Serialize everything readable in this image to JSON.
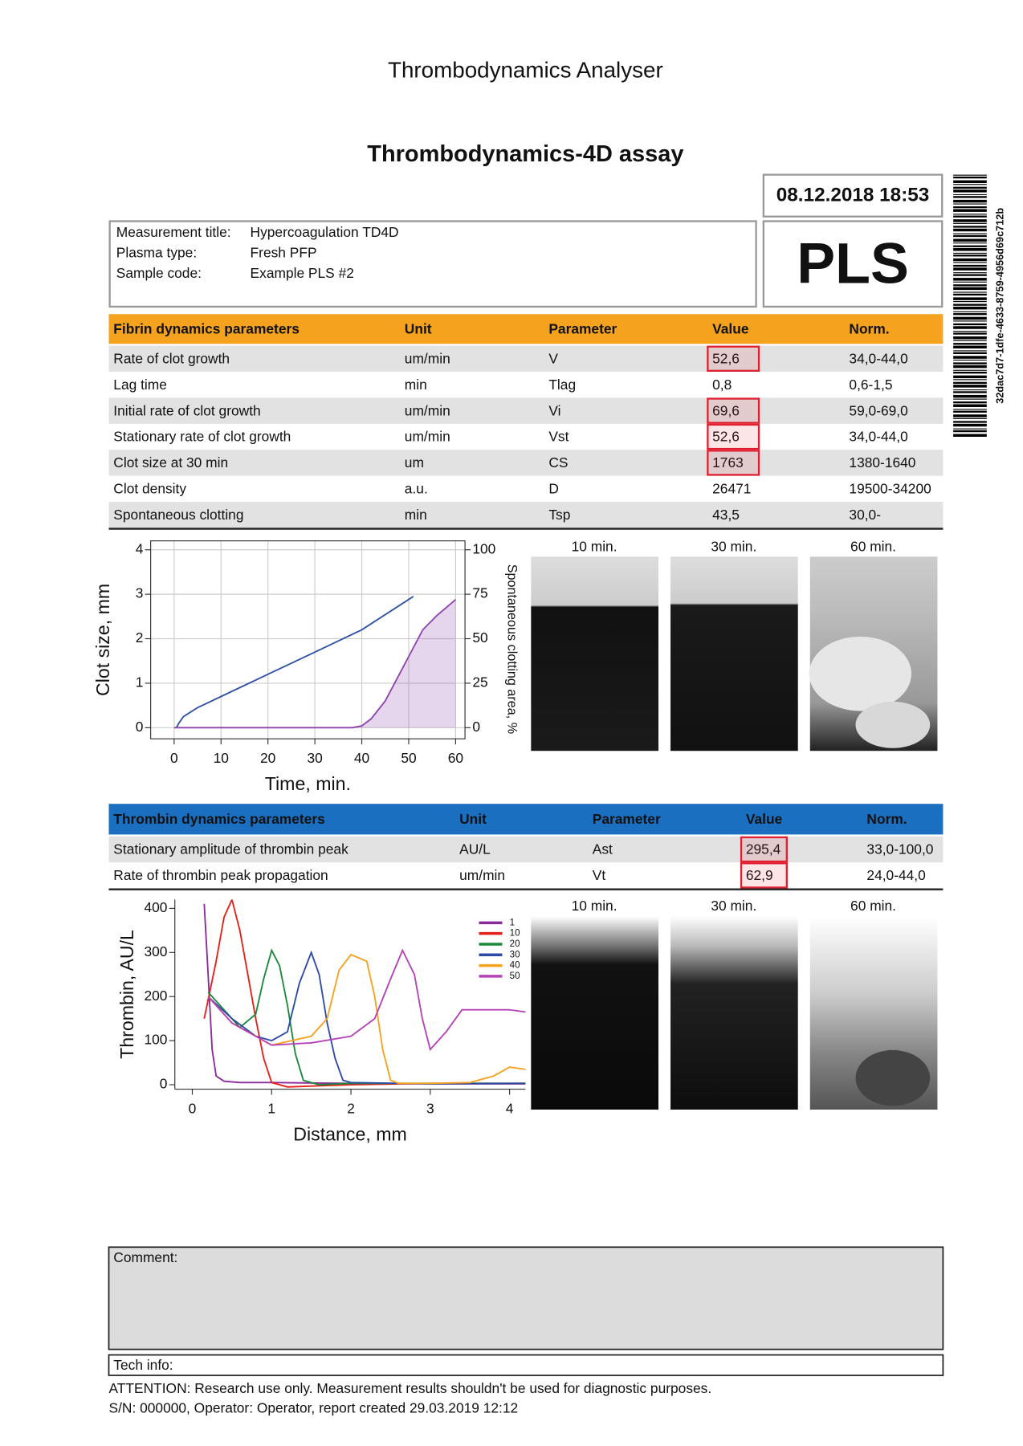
{
  "header": {
    "title": "Thrombodynamics Analyser",
    "assay": "Thrombodynamics-4D assay",
    "datetime": "08.12.2018 18:53",
    "code": "PLS",
    "barcode_text": "32dac7d7-1dfe-4633-8759-4956d69c712b"
  },
  "info": {
    "rows": [
      [
        "Measurement title:",
        "Hypercoagulation TD4D"
      ],
      [
        "Plasma type:",
        "Fresh PFP"
      ],
      [
        "Sample code:",
        "Example PLS #2"
      ]
    ]
  },
  "fibrin_table": {
    "color": "#f5a31e",
    "headers": [
      "Fibrin dynamics parameters",
      "Unit",
      "Parameter",
      "Value",
      "Norm."
    ],
    "rows": [
      [
        "Rate of clot growth",
        "um/min",
        "V",
        "52,6",
        "34,0-44,0"
      ],
      [
        "Lag time",
        "min",
        "Tlag",
        "0,8",
        "0,6-1,5"
      ],
      [
        "Initial rate of clot growth",
        "um/min",
        "Vi",
        "69,6",
        "59,0-69,0"
      ],
      [
        "Stationary rate of clot growth",
        "um/min",
        "Vst",
        "52,6",
        "34,0-44,0"
      ],
      [
        "Clot size at 30 min",
        "um",
        "CS",
        "1763",
        "1380-1640"
      ],
      [
        "Clot density",
        "a.u.",
        "D",
        "26471",
        "19500-34200"
      ],
      [
        "Spontaneous clotting",
        "min",
        "Tsp",
        "43,5",
        "30,0-"
      ]
    ],
    "flagged": [
      0,
      2,
      3,
      4
    ]
  },
  "clot_chart": {
    "type": "line",
    "x_label": "Time, min.",
    "y_label": "Clot size, mm",
    "y2_label": "Spontaneous clotting area, %",
    "xlim": [
      -5,
      62
    ],
    "xticks": [
      0,
      10,
      20,
      30,
      40,
      50,
      60
    ],
    "ylim": [
      -0.25,
      4.2
    ],
    "yticks": [
      0,
      1,
      2,
      3,
      4
    ],
    "y2lim": [
      -6.25,
      105
    ],
    "y2ticks": [
      0,
      25,
      50,
      75,
      100
    ],
    "grid": true,
    "series": [
      {
        "color": "#2e4fa3",
        "x": [
          0.5,
          1,
          2,
          5,
          10,
          20,
          30,
          40,
          51
        ],
        "values": [
          0,
          0.1,
          0.25,
          0.45,
          0.7,
          1.2,
          1.7,
          2.2,
          2.95
        ]
      },
      {
        "color": "#8e44ad",
        "axis": "y2",
        "fill": true,
        "x": [
          0,
          10,
          20,
          30,
          38,
          40,
          42,
          45,
          48,
          50,
          53,
          56,
          60
        ],
        "values": [
          0,
          0,
          0,
          0,
          0,
          1,
          5,
          15,
          30,
          40,
          55,
          63,
          72
        ]
      }
    ]
  },
  "fibrin_images": [
    "10 min.",
    "30 min.",
    "60 min."
  ],
  "thrombin_table": {
    "color": "#1b6fc0",
    "headers": [
      "Thrombin dynamics parameters",
      "Unit",
      "Parameter",
      "Value",
      "Norm."
    ],
    "rows": [
      [
        "Stationary amplitude of thrombin peak",
        "AU/L",
        "Ast",
        "295,4",
        "33,0-100,0"
      ],
      [
        "Rate of thrombin peak propagation",
        "um/min",
        "Vt",
        "62,9",
        "24,0-44,0"
      ]
    ],
    "flagged": [
      0,
      1
    ]
  },
  "thrombin_chart": {
    "type": "line",
    "x_label": "Distance, mm",
    "y_label": "Thrombin, AU/L",
    "xlim": [
      -0.22,
      4.2
    ],
    "xticks": [
      0,
      1,
      2,
      3,
      4
    ],
    "ylim": [
      -10,
      420
    ],
    "yticks": [
      0,
      100,
      200,
      300,
      400
    ],
    "grid": false,
    "legend": "upper right",
    "series": [
      {
        "name": "1",
        "color": "#8b2a9b",
        "x": [
          0.15,
          0.2,
          0.25,
          0.3,
          0.4,
          0.6,
          1,
          2,
          3,
          4.2
        ],
        "values": [
          410,
          250,
          80,
          20,
          8,
          5,
          5,
          3,
          2,
          2
        ]
      },
      {
        "name": "10",
        "color": "#e32119",
        "x": [
          0.15,
          0.3,
          0.4,
          0.5,
          0.6,
          0.7,
          0.8,
          0.9,
          1,
          1.2,
          2,
          3,
          4.2
        ],
        "values": [
          150,
          280,
          380,
          420,
          350,
          250,
          150,
          60,
          5,
          -5,
          0,
          3,
          3
        ]
      },
      {
        "name": "20",
        "color": "#1a8a3a",
        "x": [
          0.2,
          0.4,
          0.6,
          0.8,
          0.9,
          1,
          1.1,
          1.2,
          1.3,
          1.4,
          1.6,
          2,
          3,
          4.2
        ],
        "values": [
          210,
          170,
          130,
          160,
          240,
          305,
          270,
          180,
          70,
          10,
          0,
          3,
          3,
          3
        ]
      },
      {
        "name": "30",
        "color": "#2d4aa6",
        "x": [
          0.2,
          0.5,
          0.8,
          1,
          1.2,
          1.35,
          1.5,
          1.6,
          1.7,
          1.8,
          1.9,
          2,
          3,
          4.2
        ],
        "values": [
          200,
          150,
          110,
          100,
          120,
          230,
          300,
          250,
          140,
          60,
          10,
          5,
          2,
          3
        ]
      },
      {
        "name": "40",
        "color": "#f5a21f",
        "x": [
          0.2,
          0.5,
          1,
          1.5,
          1.7,
          1.85,
          2,
          2.2,
          2.3,
          2.4,
          2.5,
          2.6,
          3,
          3.5,
          3.8,
          4,
          4.2
        ],
        "values": [
          200,
          140,
          90,
          110,
          150,
          260,
          295,
          280,
          200,
          80,
          10,
          3,
          3,
          5,
          20,
          40,
          35
        ]
      },
      {
        "name": "50",
        "color": "#b542b8",
        "x": [
          0.2,
          0.5,
          1,
          1.5,
          2,
          2.3,
          2.5,
          2.65,
          2.8,
          2.9,
          3,
          3.2,
          3.4,
          4,
          4.2
        ],
        "values": [
          200,
          140,
          90,
          95,
          110,
          150,
          240,
          305,
          250,
          150,
          80,
          120,
          170,
          170,
          165
        ]
      }
    ]
  },
  "thrombin_images": [
    "10 min.",
    "30 min.",
    "60 min."
  ],
  "footer": {
    "comment": "Comment:",
    "tech_info": "Tech info:",
    "attention": "ATTENTION: Research use only. Measurement results shouldn't be used for diagnostic purposes.",
    "serial": "S/N: 000000, Operator: Operator, report created 29.03.2019 12:12"
  }
}
